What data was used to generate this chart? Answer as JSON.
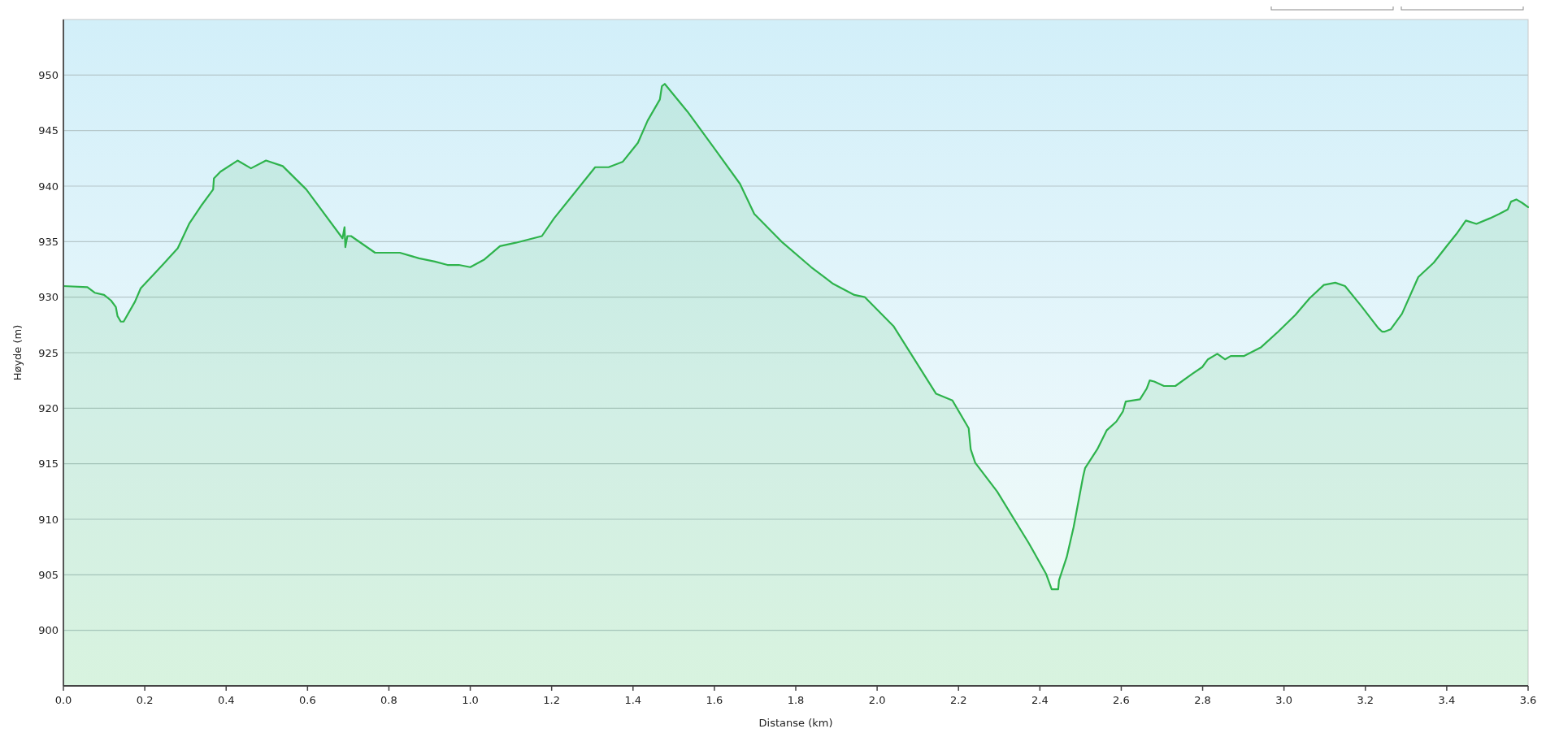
{
  "chart_data": {
    "type": "area",
    "xlabel": "Distanse (km)",
    "ylabel": "Høyde (m)",
    "x": [
      0,
      0.059,
      0.077,
      0.1,
      0.117,
      0.129,
      0.133,
      0.141,
      0.148,
      0.176,
      0.19,
      0.246,
      0.281,
      0.309,
      0.34,
      0.368,
      0.37,
      0.386,
      0.428,
      0.461,
      0.498,
      0.539,
      0.597,
      0.686,
      0.691,
      0.693,
      0.698,
      0.707,
      0.766,
      0.827,
      0.874,
      0.913,
      0.944,
      0.972,
      1.0,
      1.035,
      1.073,
      1.112,
      1.176,
      1.206,
      1.307,
      1.34,
      1.375,
      1.412,
      1.436,
      1.466,
      1.471,
      1.478,
      1.534,
      1.6,
      1.663,
      1.698,
      1.768,
      1.838,
      1.892,
      1.944,
      1.97,
      2.04,
      2.145,
      2.185,
      2.225,
      2.23,
      2.241,
      2.295,
      2.372,
      2.415,
      2.429,
      2.445,
      2.447,
      2.466,
      2.483,
      2.506,
      2.511,
      2.541,
      2.564,
      2.588,
      2.604,
      2.611,
      2.646,
      2.663,
      2.67,
      2.681,
      2.705,
      2.733,
      2.775,
      2.799,
      2.813,
      2.836,
      2.855,
      2.869,
      2.902,
      2.944,
      2.986,
      3.028,
      3.063,
      3.098,
      3.126,
      3.15,
      3.19,
      3.232,
      3.241,
      3.248,
      3.262,
      3.29,
      3.33,
      3.368,
      3.4,
      3.424,
      3.447,
      3.473,
      3.506,
      3.529,
      3.55,
      3.558,
      3.571,
      3.585,
      3.6
    ],
    "series": [
      {
        "color": "#2eb34c",
        "values": [
          931.0,
          930.9,
          930.4,
          930.2,
          929.7,
          929.1,
          928.3,
          927.8,
          927.8,
          929.6,
          930.8,
          933.0,
          934.4,
          936.6,
          938.3,
          939.7,
          940.7,
          941.3,
          942.3,
          941.6,
          942.3,
          941.8,
          939.7,
          935.3,
          936.3,
          934.5,
          935.5,
          935.5,
          934.0,
          934.0,
          933.5,
          933.2,
          932.9,
          932.9,
          932.7,
          933.4,
          934.6,
          934.9,
          935.5,
          937.1,
          941.7,
          941.7,
          942.2,
          943.9,
          945.9,
          947.8,
          949.0,
          949.2,
          946.7,
          943.4,
          940.2,
          937.5,
          934.9,
          932.7,
          931.2,
          930.2,
          930.0,
          927.4,
          921.3,
          920.7,
          918.2,
          916.3,
          915.1,
          912.5,
          907.9,
          905.1,
          903.7,
          903.7,
          904.5,
          906.6,
          909.3,
          913.8,
          914.6,
          916.3,
          918.0,
          918.8,
          919.7,
          920.6,
          920.8,
          921.8,
          922.5,
          922.4,
          922.0,
          922.0,
          923.1,
          923.7,
          924.4,
          924.9,
          924.4,
          924.7,
          924.7,
          925.5,
          926.9,
          928.4,
          929.9,
          931.1,
          931.3,
          931.0,
          929.2,
          927.2,
          926.9,
          926.9,
          927.1,
          928.5,
          931.8,
          933.1,
          934.6,
          935.7,
          936.9,
          936.6,
          937.1,
          937.5,
          937.9,
          938.6,
          938.8,
          938.5,
          938.1
        ]
      }
    ],
    "xlim": [
      0,
      3.6
    ],
    "xticks": [
      {
        "value": 0,
        "label": "0.0"
      },
      0.2,
      0.4,
      0.6,
      0.8,
      {
        "value": 1,
        "label": "1.0"
      },
      1.2,
      1.4,
      1.6,
      1.8,
      {
        "value": 2,
        "label": "2.0"
      },
      2.2,
      2.4,
      2.6,
      2.8,
      {
        "value": 3,
        "label": "3.0"
      },
      3.2,
      3.4,
      3.6
    ],
    "ylim": [
      895,
      955
    ],
    "yticks": [
      900,
      905,
      910,
      915,
      920,
      925,
      930,
      935,
      940,
      945,
      950
    ],
    "grid": "y"
  }
}
